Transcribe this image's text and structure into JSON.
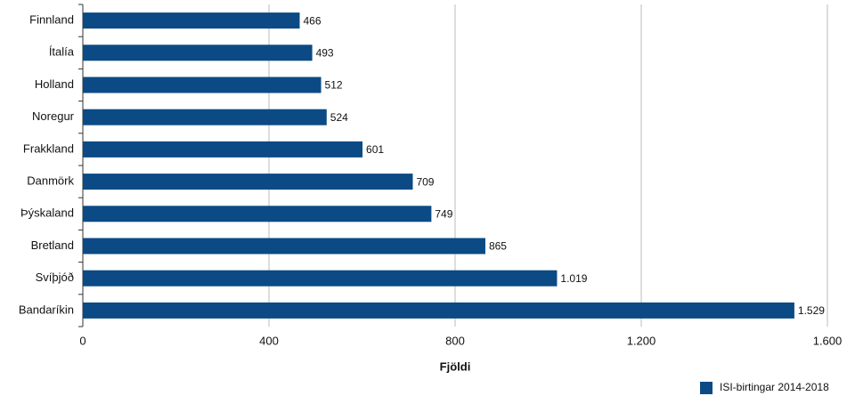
{
  "chart_data": {
    "type": "bar",
    "orientation": "horizontal",
    "categories": [
      "Finnland",
      "Ítalía",
      "Holland",
      "Noregur",
      "Frakkland",
      "Danmörk",
      "Þýskaland",
      "Bretland",
      "Svíþjóð",
      "Bandaríkin"
    ],
    "series": [
      {
        "name": "ISI-birtingar 2014-2018",
        "color": "#0b4a85",
        "values": [
          466,
          493,
          512,
          524,
          601,
          709,
          749,
          865,
          1019,
          1529
        ],
        "value_labels": [
          "466",
          "493",
          "512",
          "524",
          "601",
          "709",
          "749",
          "865",
          "1.019",
          "1.529"
        ]
      }
    ],
    "x_label": "Fjöldi",
    "xlim": [
      0,
      1600
    ],
    "xticks": [
      0,
      400,
      800,
      {
        "value": 1200,
        "label": "1.200"
      },
      {
        "value": 1600,
        "label": "1.600"
      }
    ],
    "grid": true,
    "legend": "bottom-right"
  }
}
